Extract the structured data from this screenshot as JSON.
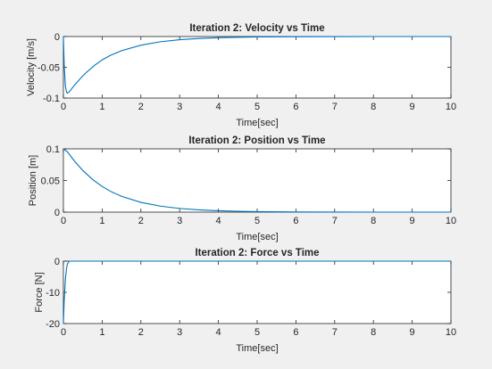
{
  "window": {
    "background": "#f0f0f0",
    "line_color": "#0072bd"
  },
  "chart_data": [
    {
      "type": "line",
      "title": "Iteration 2: Velocity vs Time",
      "xlabel": "Time[sec]",
      "ylabel": "Velocity [m/s]",
      "xlim": [
        0,
        10
      ],
      "ylim": [
        -0.1,
        0
      ],
      "xticks": [
        0,
        1,
        2,
        3,
        4,
        5,
        6,
        7,
        8,
        9,
        10
      ],
      "yticks": [
        0,
        -0.05,
        -0.1
      ],
      "ytick_labels": [
        "0",
        "-0.05",
        "-0.1"
      ],
      "grid": false,
      "series": [
        {
          "x": [
            0,
            0.02,
            0.05,
            0.08,
            0.1,
            0.15,
            0.2,
            0.3,
            0.4,
            0.5,
            0.6,
            0.8,
            1.0,
            1.2,
            1.5,
            2.0,
            2.5,
            3.0,
            3.5,
            4.0,
            5.0,
            6.0,
            7.0,
            8.0,
            9.0,
            10.0
          ],
          "y": [
            0,
            -0.045,
            -0.08,
            -0.09,
            -0.092,
            -0.09,
            -0.086,
            -0.078,
            -0.071,
            -0.064,
            -0.058,
            -0.047,
            -0.038,
            -0.031,
            -0.023,
            -0.014,
            -0.0085,
            -0.0052,
            -0.0032,
            -0.0019,
            -0.0007,
            -0.0003,
            -0.0001,
            0,
            0,
            0
          ]
        }
      ]
    },
    {
      "type": "line",
      "title": "Iteration 2: Position vs Time",
      "xlabel": "Time[sec]",
      "ylabel": "Position [m]",
      "xlim": [
        0,
        10
      ],
      "ylim": [
        0,
        0.1
      ],
      "xticks": [
        0,
        1,
        2,
        3,
        4,
        5,
        6,
        7,
        8,
        9,
        10
      ],
      "yticks": [
        0.1,
        0.05,
        0
      ],
      "ytick_labels": [
        "0.1",
        "0.05",
        "0"
      ],
      "grid": false,
      "series": [
        {
          "x": [
            0,
            0.1,
            0.2,
            0.3,
            0.5,
            0.75,
            1.0,
            1.25,
            1.5,
            2.0,
            2.5,
            3.0,
            3.5,
            4.0,
            4.5,
            5.0,
            6.0,
            7.0,
            8.0,
            9.0,
            10.0
          ],
          "y": [
            0.1,
            0.0955,
            0.0875,
            0.0796,
            0.0659,
            0.0517,
            0.0406,
            0.0318,
            0.025,
            0.0154,
            0.0095,
            0.0058,
            0.0036,
            0.0022,
            0.0014,
            0.0008,
            0.0003,
            0.0001,
            0,
            0,
            0
          ]
        }
      ]
    },
    {
      "type": "line",
      "title": "Iteration 2: Force vs Time",
      "xlabel": "Time[sec]",
      "ylabel": "Force [N]",
      "xlim": [
        0,
        10
      ],
      "ylim": [
        -20,
        0
      ],
      "xticks": [
        0,
        1,
        2,
        3,
        4,
        5,
        6,
        7,
        8,
        9,
        10
      ],
      "yticks": [
        0,
        -10,
        -20
      ],
      "ytick_labels": [
        "0",
        "-10",
        "-20"
      ],
      "grid": false,
      "series": [
        {
          "x": [
            0,
            0.02,
            0.05,
            0.08,
            0.1,
            0.15,
            0.2,
            0.3,
            0.5,
            1.0,
            2.0,
            3.0,
            5.0,
            10.0
          ],
          "y": [
            -20,
            -13,
            -6,
            -2.5,
            -1,
            0.1,
            0.35,
            0.3,
            0.2,
            0.1,
            0.03,
            0.01,
            0,
            0
          ]
        }
      ]
    }
  ]
}
